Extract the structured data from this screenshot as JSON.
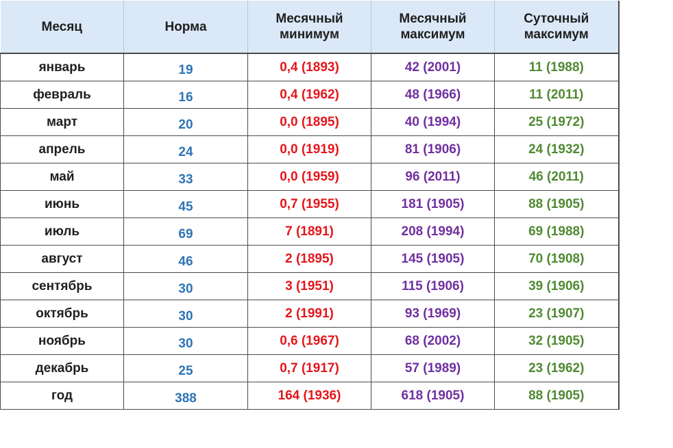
{
  "headers": {
    "month": "Месяц",
    "norm": "Норма",
    "monthly_min": [
      "Месячный",
      "минимум"
    ],
    "monthly_max": [
      "Месячный",
      "максимум"
    ],
    "daily_max": [
      "Суточный",
      "максимум"
    ]
  },
  "colors": {
    "header_bg": "#dbe8f7",
    "norm": "#2e74b5",
    "monthly_min": "#e3161b",
    "monthly_max": "#7030a0",
    "daily_max": "#4f8a32"
  },
  "rows": [
    {
      "month": "январь",
      "norm": "19",
      "monthly_min": "0,4 (1893)",
      "monthly_max": "42 (2001)",
      "daily_max": "11 (1988)"
    },
    {
      "month": "февраль",
      "norm": "16",
      "monthly_min": "0,4 (1962)",
      "monthly_max": "48 (1966)",
      "daily_max": "11 (2011)"
    },
    {
      "month": "март",
      "norm": "20",
      "monthly_min": "0,0 (1895)",
      "monthly_max": "40 (1994)",
      "daily_max": "25 (1972)"
    },
    {
      "month": "апрель",
      "norm": "24",
      "monthly_min": "0,0 (1919)",
      "monthly_max": "81 (1906)",
      "daily_max": "24 (1932)"
    },
    {
      "month": "май",
      "norm": "33",
      "monthly_min": "0,0 (1959)",
      "monthly_max": "96 (2011)",
      "daily_max": "46 (2011)"
    },
    {
      "month": "июнь",
      "norm": "45",
      "monthly_min": "0,7 (1955)",
      "monthly_max": "181 (1905)",
      "daily_max": "88 (1905)"
    },
    {
      "month": "июль",
      "norm": "69",
      "monthly_min": "7 (1891)",
      "monthly_max": "208 (1994)",
      "daily_max": "69 (1988)"
    },
    {
      "month": "август",
      "norm": "46",
      "monthly_min": "2 (1895)",
      "monthly_max": "145 (1905)",
      "daily_max": "70 (1908)"
    },
    {
      "month": "сентябрь",
      "norm": "30",
      "monthly_min": "3 (1951)",
      "monthly_max": "115 (1906)",
      "daily_max": "39 (1906)"
    },
    {
      "month": "октябрь",
      "norm": "30",
      "monthly_min": "2 (1991)",
      "monthly_max": "93 (1969)",
      "daily_max": "23 (1907)"
    },
    {
      "month": "ноябрь",
      "norm": "30",
      "monthly_min": "0,6 (1967)",
      "monthly_max": "68 (2002)",
      "daily_max": "32 (1905)"
    },
    {
      "month": "декабрь",
      "norm": "25",
      "monthly_min": "0,7 (1917)",
      "monthly_max": "57 (1989)",
      "daily_max": "23 (1962)"
    },
    {
      "month": "год",
      "norm": "388",
      "monthly_min": "164 (1936)",
      "monthly_max": "618 (1905)",
      "daily_max": "88 (1905)"
    }
  ]
}
